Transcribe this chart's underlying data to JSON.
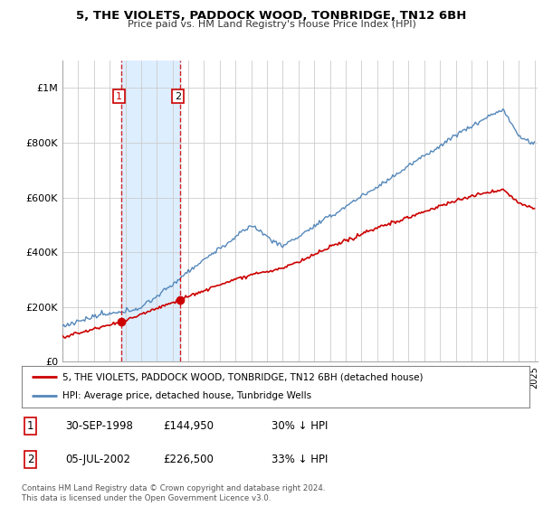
{
  "title": "5, THE VIOLETS, PADDOCK WOOD, TONBRIDGE, TN12 6BH",
  "subtitle": "Price paid vs. HM Land Registry's House Price Index (HPI)",
  "legend_line1": "5, THE VIOLETS, PADDOCK WOOD, TONBRIDGE, TN12 6BH (detached house)",
  "legend_line2": "HPI: Average price, detached house, Tunbridge Wells",
  "table_rows": [
    {
      "num": "1",
      "date": "30-SEP-1998",
      "price": "£144,950",
      "hpi": "30% ↓ HPI"
    },
    {
      "num": "2",
      "date": "05-JUL-2002",
      "price": "£226,500",
      "hpi": "33% ↓ HPI"
    }
  ],
  "footer": "Contains HM Land Registry data © Crown copyright and database right 2024.\nThis data is licensed under the Open Government Licence v3.0.",
  "red_color": "#cc0000",
  "blue_color": "#5588bb",
  "blue_fill_color": "#ddeeff",
  "dashed_color": "#cc0000",
  "background_color": "#ffffff",
  "grid_color": "#cccccc",
  "sale1_year": 1998.75,
  "sale1_value": 144950,
  "sale2_year": 2002.5,
  "sale2_value": 226500,
  "ylim": [
    0,
    1100000
  ],
  "yticks": [
    0,
    200000,
    400000,
    600000,
    800000,
    1000000
  ],
  "ytick_labels": [
    "£0",
    "£200K",
    "£400K",
    "£600K",
    "£800K",
    "£1M"
  ],
  "xstart": 1995,
  "xend": 2025
}
